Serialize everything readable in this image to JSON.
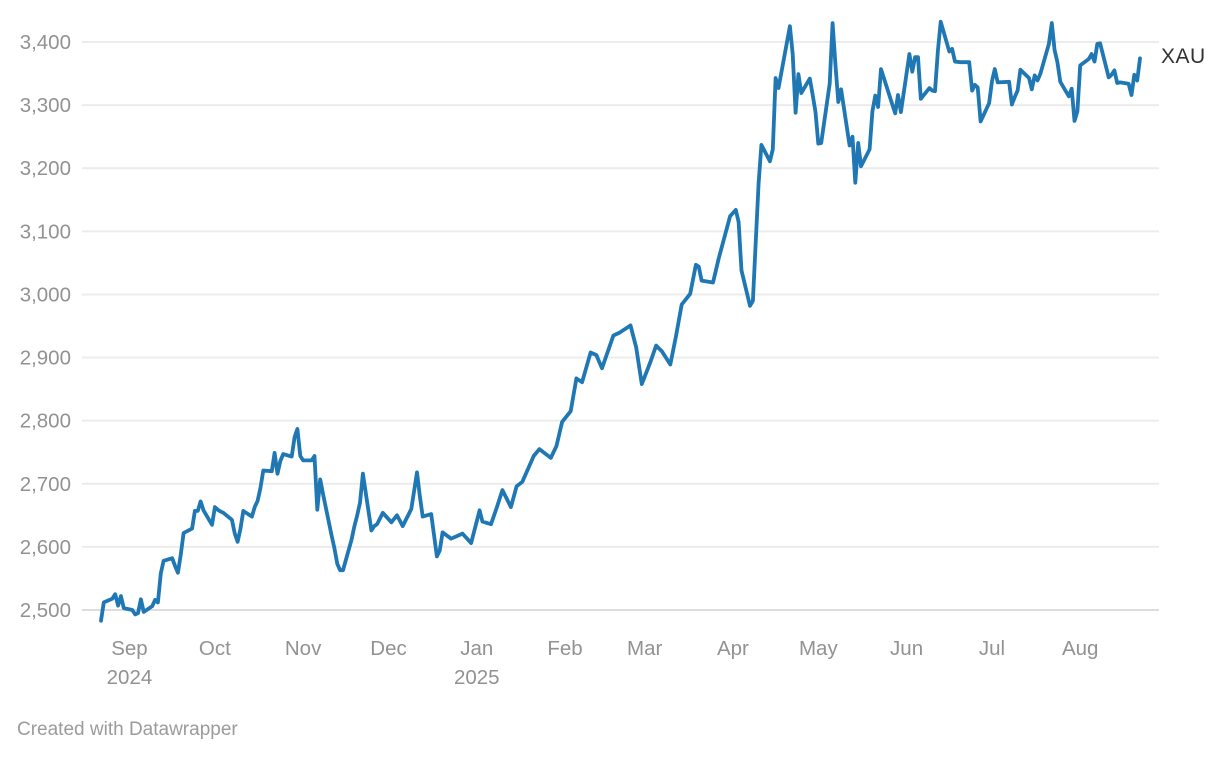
{
  "footer": {
    "credit": "Created with Datawrapper"
  },
  "colors": {
    "background": "#ffffff",
    "line": "#1f77b4",
    "grid": "#ececec",
    "baseline": "#dddddd",
    "axis_label": "#929292",
    "series_label": "#333333",
    "credit": "#9b9b9b"
  },
  "chart_data": {
    "type": "line",
    "title": "",
    "xlabel": "",
    "ylabel": "",
    "grid": true,
    "legend_position": "end-of-line",
    "series_label": "XAU",
    "y_axis": {
      "min": 2500,
      "max": 3400,
      "step": 100,
      "tick_labels": [
        "2,500",
        "2,600",
        "2,700",
        "2,800",
        "2,900",
        "3,000",
        "3,100",
        "3,200",
        "3,300",
        "3,400"
      ]
    },
    "x_axis": {
      "start_date": "2024-08-22",
      "end_date": "2025-08-22",
      "ticks": [
        {
          "label": "Sep",
          "sublabel": "2024",
          "date": "2024-09-01"
        },
        {
          "label": "Oct",
          "sublabel": "",
          "date": "2024-10-01"
        },
        {
          "label": "Nov",
          "sublabel": "",
          "date": "2024-11-01"
        },
        {
          "label": "Dec",
          "sublabel": "",
          "date": "2024-12-01"
        },
        {
          "label": "Jan",
          "sublabel": "2025",
          "date": "2025-01-01"
        },
        {
          "label": "Feb",
          "sublabel": "",
          "date": "2025-02-01"
        },
        {
          "label": "Mar",
          "sublabel": "",
          "date": "2025-03-01"
        },
        {
          "label": "Apr",
          "sublabel": "",
          "date": "2025-04-01"
        },
        {
          "label": "May",
          "sublabel": "",
          "date": "2025-05-01"
        },
        {
          "label": "Jun",
          "sublabel": "",
          "date": "2025-06-01"
        },
        {
          "label": "Jul",
          "sublabel": "",
          "date": "2025-07-01"
        },
        {
          "label": "Aug",
          "sublabel": "",
          "date": "2025-08-01"
        }
      ]
    },
    "series": [
      {
        "name": "XAU",
        "color": "#1f77b4",
        "points": [
          [
            "2024-08-22",
            2483
          ],
          [
            "2024-08-23",
            2512
          ],
          [
            "2024-08-26",
            2518
          ],
          [
            "2024-08-27",
            2525
          ],
          [
            "2024-08-28",
            2507
          ],
          [
            "2024-08-29",
            2522
          ],
          [
            "2024-08-30",
            2503
          ],
          [
            "2024-09-02",
            2500
          ],
          [
            "2024-09-03",
            2493
          ],
          [
            "2024-09-04",
            2495
          ],
          [
            "2024-09-05",
            2517
          ],
          [
            "2024-09-06",
            2497
          ],
          [
            "2024-09-09",
            2506
          ],
          [
            "2024-09-10",
            2516
          ],
          [
            "2024-09-11",
            2512
          ],
          [
            "2024-09-12",
            2558
          ],
          [
            "2024-09-13",
            2578
          ],
          [
            "2024-09-16",
            2582
          ],
          [
            "2024-09-17",
            2570
          ],
          [
            "2024-09-18",
            2559
          ],
          [
            "2024-09-19",
            2587
          ],
          [
            "2024-09-20",
            2622
          ],
          [
            "2024-09-23",
            2629
          ],
          [
            "2024-09-24",
            2657
          ],
          [
            "2024-09-25",
            2657
          ],
          [
            "2024-09-26",
            2672
          ],
          [
            "2024-09-27",
            2658
          ],
          [
            "2024-09-30",
            2635
          ],
          [
            "2024-10-01",
            2663
          ],
          [
            "2024-10-02",
            2659
          ],
          [
            "2024-10-03",
            2656
          ],
          [
            "2024-10-04",
            2654
          ],
          [
            "2024-10-07",
            2643
          ],
          [
            "2024-10-08",
            2621
          ],
          [
            "2024-10-09",
            2608
          ],
          [
            "2024-10-10",
            2629
          ],
          [
            "2024-10-11",
            2657
          ],
          [
            "2024-10-14",
            2648
          ],
          [
            "2024-10-15",
            2663
          ],
          [
            "2024-10-16",
            2673
          ],
          [
            "2024-10-17",
            2693
          ],
          [
            "2024-10-18",
            2721
          ],
          [
            "2024-10-21",
            2720
          ],
          [
            "2024-10-22",
            2749
          ],
          [
            "2024-10-23",
            2716
          ],
          [
            "2024-10-24",
            2736
          ],
          [
            "2024-10-25",
            2747
          ],
          [
            "2024-10-28",
            2743
          ],
          [
            "2024-10-29",
            2774
          ],
          [
            "2024-10-30",
            2787
          ],
          [
            "2024-10-31",
            2744
          ],
          [
            "2024-11-01",
            2737
          ],
          [
            "2024-11-04",
            2737
          ],
          [
            "2024-11-05",
            2744
          ],
          [
            "2024-11-06",
            2659
          ],
          [
            "2024-11-07",
            2707
          ],
          [
            "2024-11-08",
            2684
          ],
          [
            "2024-11-11",
            2618
          ],
          [
            "2024-11-12",
            2598
          ],
          [
            "2024-11-13",
            2573
          ],
          [
            "2024-11-14",
            2563
          ],
          [
            "2024-11-15",
            2563
          ],
          [
            "2024-11-18",
            2611
          ],
          [
            "2024-11-19",
            2632
          ],
          [
            "2024-11-20",
            2650
          ],
          [
            "2024-11-21",
            2670
          ],
          [
            "2024-11-22",
            2716
          ],
          [
            "2024-11-25",
            2626
          ],
          [
            "2024-11-26",
            2633
          ],
          [
            "2024-11-27",
            2636
          ],
          [
            "2024-11-29",
            2654
          ],
          [
            "2024-12-02",
            2639
          ],
          [
            "2024-12-04",
            2650
          ],
          [
            "2024-12-06",
            2633
          ],
          [
            "2024-12-09",
            2660
          ],
          [
            "2024-12-11",
            2718
          ],
          [
            "2024-12-12",
            2681
          ],
          [
            "2024-12-13",
            2648
          ],
          [
            "2024-12-16",
            2652
          ],
          [
            "2024-12-18",
            2585
          ],
          [
            "2024-12-19",
            2594
          ],
          [
            "2024-12-20",
            2623
          ],
          [
            "2024-12-23",
            2613
          ],
          [
            "2024-12-27",
            2621
          ],
          [
            "2024-12-30",
            2606
          ],
          [
            "2025-01-02",
            2658
          ],
          [
            "2025-01-03",
            2640
          ],
          [
            "2025-01-06",
            2636
          ],
          [
            "2025-01-08",
            2662
          ],
          [
            "2025-01-10",
            2690
          ],
          [
            "2025-01-13",
            2663
          ],
          [
            "2025-01-15",
            2696
          ],
          [
            "2025-01-17",
            2703
          ],
          [
            "2025-01-21",
            2744
          ],
          [
            "2025-01-23",
            2755
          ],
          [
            "2025-01-27",
            2741
          ],
          [
            "2025-01-29",
            2760
          ],
          [
            "2025-01-31",
            2798
          ],
          [
            "2025-02-03",
            2815
          ],
          [
            "2025-02-05",
            2867
          ],
          [
            "2025-02-07",
            2861
          ],
          [
            "2025-02-10",
            2908
          ],
          [
            "2025-02-12",
            2904
          ],
          [
            "2025-02-14",
            2883
          ],
          [
            "2025-02-18",
            2935
          ],
          [
            "2025-02-20",
            2939
          ],
          [
            "2025-02-24",
            2951
          ],
          [
            "2025-02-26",
            2916
          ],
          [
            "2025-02-28",
            2858
          ],
          [
            "2025-03-03",
            2893
          ],
          [
            "2025-03-05",
            2919
          ],
          [
            "2025-03-07",
            2910
          ],
          [
            "2025-03-10",
            2889
          ],
          [
            "2025-03-12",
            2934
          ],
          [
            "2025-03-14",
            2984
          ],
          [
            "2025-03-17",
            3001
          ],
          [
            "2025-03-19",
            3047
          ],
          [
            "2025-03-20",
            3044
          ],
          [
            "2025-03-21",
            3022
          ],
          [
            "2025-03-25",
            3019
          ],
          [
            "2025-03-27",
            3057
          ],
          [
            "2025-03-31",
            3124
          ],
          [
            "2025-04-02",
            3134
          ],
          [
            "2025-04-03",
            3115
          ],
          [
            "2025-04-04",
            3038
          ],
          [
            "2025-04-07",
            2982
          ],
          [
            "2025-04-08",
            2990
          ],
          [
            "2025-04-09",
            3082
          ],
          [
            "2025-04-10",
            3176
          ],
          [
            "2025-04-11",
            3237
          ],
          [
            "2025-04-14",
            3211
          ],
          [
            "2025-04-15",
            3230
          ],
          [
            "2025-04-16",
            3343
          ],
          [
            "2025-04-17",
            3327
          ],
          [
            "2025-04-21",
            3425
          ],
          [
            "2025-04-22",
            3381
          ],
          [
            "2025-04-23",
            3288
          ],
          [
            "2025-04-24",
            3349
          ],
          [
            "2025-04-25",
            3319
          ],
          [
            "2025-04-28",
            3342
          ],
          [
            "2025-04-29",
            3317
          ],
          [
            "2025-04-30",
            3289
          ],
          [
            "2025-05-01",
            3239
          ],
          [
            "2025-05-02",
            3240
          ],
          [
            "2025-05-05",
            3334
          ],
          [
            "2025-05-06",
            3430
          ],
          [
            "2025-05-07",
            3365
          ],
          [
            "2025-05-08",
            3305
          ],
          [
            "2025-05-09",
            3325
          ],
          [
            "2025-05-12",
            3236
          ],
          [
            "2025-05-13",
            3250
          ],
          [
            "2025-05-14",
            3177
          ],
          [
            "2025-05-15",
            3240
          ],
          [
            "2025-05-16",
            3203
          ],
          [
            "2025-05-19",
            3230
          ],
          [
            "2025-05-20",
            3290
          ],
          [
            "2025-05-21",
            3315
          ],
          [
            "2025-05-22",
            3297
          ],
          [
            "2025-05-23",
            3357
          ],
          [
            "2025-05-27",
            3301
          ],
          [
            "2025-05-28",
            3287
          ],
          [
            "2025-05-29",
            3316
          ],
          [
            "2025-05-30",
            3289
          ],
          [
            "2025-06-02",
            3381
          ],
          [
            "2025-06-03",
            3353
          ],
          [
            "2025-06-04",
            3376
          ],
          [
            "2025-06-05",
            3376
          ],
          [
            "2025-06-06",
            3310
          ],
          [
            "2025-06-09",
            3327
          ],
          [
            "2025-06-10",
            3323
          ],
          [
            "2025-06-11",
            3322
          ],
          [
            "2025-06-12",
            3386
          ],
          [
            "2025-06-13",
            3432
          ],
          [
            "2025-06-16",
            3385
          ],
          [
            "2025-06-17",
            3389
          ],
          [
            "2025-06-18",
            3369
          ],
          [
            "2025-06-20",
            3368
          ],
          [
            "2025-06-23",
            3368
          ],
          [
            "2025-06-24",
            3323
          ],
          [
            "2025-06-25",
            3332
          ],
          [
            "2025-06-26",
            3328
          ],
          [
            "2025-06-27",
            3274
          ],
          [
            "2025-06-30",
            3303
          ],
          [
            "2025-07-01",
            3338
          ],
          [
            "2025-07-02",
            3357
          ],
          [
            "2025-07-03",
            3336
          ],
          [
            "2025-07-07",
            3337
          ],
          [
            "2025-07-08",
            3301
          ],
          [
            "2025-07-09",
            3313
          ],
          [
            "2025-07-10",
            3323
          ],
          [
            "2025-07-11",
            3356
          ],
          [
            "2025-07-14",
            3343
          ],
          [
            "2025-07-15",
            3325
          ],
          [
            "2025-07-16",
            3347
          ],
          [
            "2025-07-17",
            3339
          ],
          [
            "2025-07-18",
            3350
          ],
          [
            "2025-07-21",
            3397
          ],
          [
            "2025-07-22",
            3430
          ],
          [
            "2025-07-23",
            3387
          ],
          [
            "2025-07-24",
            3368
          ],
          [
            "2025-07-25",
            3337
          ],
          [
            "2025-07-28",
            3314
          ],
          [
            "2025-07-29",
            3326
          ],
          [
            "2025-07-30",
            3275
          ],
          [
            "2025-07-31",
            3290
          ],
          [
            "2025-08-01",
            3363
          ],
          [
            "2025-08-04",
            3373
          ],
          [
            "2025-08-05",
            3381
          ],
          [
            "2025-08-06",
            3369
          ],
          [
            "2025-08-07",
            3397
          ],
          [
            "2025-08-08",
            3398
          ],
          [
            "2025-08-11",
            3344
          ],
          [
            "2025-08-12",
            3348
          ],
          [
            "2025-08-13",
            3355
          ],
          [
            "2025-08-14",
            3335
          ],
          [
            "2025-08-15",
            3336
          ],
          [
            "2025-08-18",
            3334
          ],
          [
            "2025-08-19",
            3316
          ],
          [
            "2025-08-20",
            3348
          ],
          [
            "2025-08-21",
            3339
          ],
          [
            "2025-08-22",
            3374
          ]
        ]
      }
    ]
  }
}
